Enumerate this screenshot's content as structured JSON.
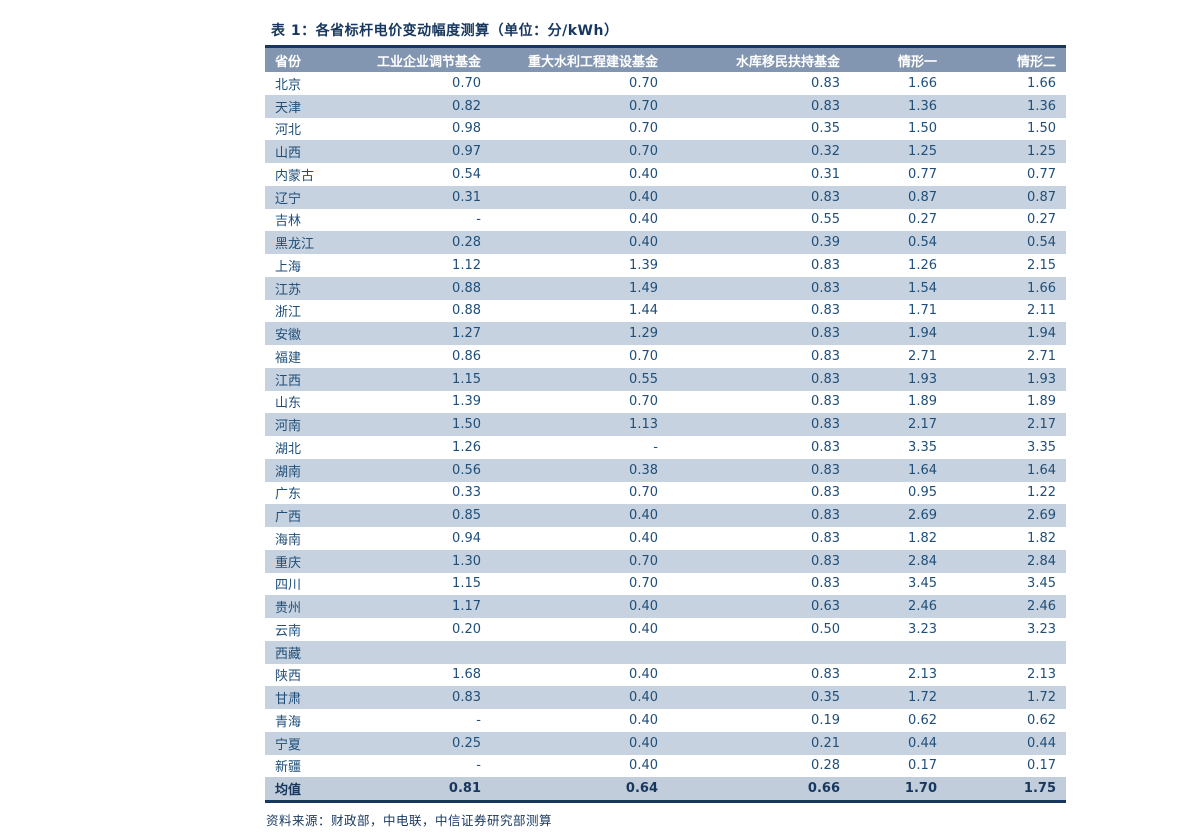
{
  "title": "表 1：各省标杆电价变动幅度测算（单位：分/kWh）",
  "source": "资料来源：财政部，中电联，中信证券研究部测算",
  "colors": {
    "title_text": "#17375E",
    "header_bg": "#8296B1",
    "header_text": "#FFFFFF",
    "row_stripe": "#C6D2DF",
    "cell_text": "#1F4E79",
    "avg_row_bg": "#C1CDDA",
    "border_dark": "#17375E",
    "page_bg": "#FFFFFF"
  },
  "chart_data": {
    "type": "table",
    "title": "表 1：各省标杆电价变动幅度测算（单位：分/kWh）",
    "columns": [
      "省份",
      "工业企业调节基金",
      "重大水利工程建设基金",
      "水库移民扶持基金",
      "情形一",
      "情形二"
    ],
    "rows": [
      [
        "北京",
        "0.70",
        "0.70",
        "0.83",
        "1.66",
        "1.66"
      ],
      [
        "天津",
        "0.82",
        "0.70",
        "0.83",
        "1.36",
        "1.36"
      ],
      [
        "河北",
        "0.98",
        "0.70",
        "0.35",
        "1.50",
        "1.50"
      ],
      [
        "山西",
        "0.97",
        "0.70",
        "0.32",
        "1.25",
        "1.25"
      ],
      [
        "内蒙古",
        "0.54",
        "0.40",
        "0.31",
        "0.77",
        "0.77"
      ],
      [
        "辽宁",
        "0.31",
        "0.40",
        "0.83",
        "0.87",
        "0.87"
      ],
      [
        "吉林",
        "-",
        "0.40",
        "0.55",
        "0.27",
        "0.27"
      ],
      [
        "黑龙江",
        "0.28",
        "0.40",
        "0.39",
        "0.54",
        "0.54"
      ],
      [
        "上海",
        "1.12",
        "1.39",
        "0.83",
        "1.26",
        "2.15"
      ],
      [
        "江苏",
        "0.88",
        "1.49",
        "0.83",
        "1.54",
        "1.66"
      ],
      [
        "浙江",
        "0.88",
        "1.44",
        "0.83",
        "1.71",
        "2.11"
      ],
      [
        "安徽",
        "1.27",
        "1.29",
        "0.83",
        "1.94",
        "1.94"
      ],
      [
        "福建",
        "0.86",
        "0.70",
        "0.83",
        "2.71",
        "2.71"
      ],
      [
        "江西",
        "1.15",
        "0.55",
        "0.83",
        "1.93",
        "1.93"
      ],
      [
        "山东",
        "1.39",
        "0.70",
        "0.83",
        "1.89",
        "1.89"
      ],
      [
        "河南",
        "1.50",
        "1.13",
        "0.83",
        "2.17",
        "2.17"
      ],
      [
        "湖北",
        "1.26",
        "-",
        "0.83",
        "3.35",
        "3.35"
      ],
      [
        "湖南",
        "0.56",
        "0.38",
        "0.83",
        "1.64",
        "1.64"
      ],
      [
        "广东",
        "0.33",
        "0.70",
        "0.83",
        "0.95",
        "1.22"
      ],
      [
        "广西",
        "0.85",
        "0.40",
        "0.83",
        "2.69",
        "2.69"
      ],
      [
        "海南",
        "0.94",
        "0.40",
        "0.83",
        "1.82",
        "1.82"
      ],
      [
        "重庆",
        "1.30",
        "0.70",
        "0.83",
        "2.84",
        "2.84"
      ],
      [
        "四川",
        "1.15",
        "0.70",
        "0.83",
        "3.45",
        "3.45"
      ],
      [
        "贵州",
        "1.17",
        "0.40",
        "0.63",
        "2.46",
        "2.46"
      ],
      [
        "云南",
        "0.20",
        "0.40",
        "0.50",
        "3.23",
        "3.23"
      ],
      [
        "西藏",
        "",
        "",
        "",
        "",
        ""
      ],
      [
        "陕西",
        "1.68",
        "0.40",
        "0.83",
        "2.13",
        "2.13"
      ],
      [
        "甘肃",
        "0.83",
        "0.40",
        "0.35",
        "1.72",
        "1.72"
      ],
      [
        "青海",
        "-",
        "0.40",
        "0.19",
        "0.62",
        "0.62"
      ],
      [
        "宁夏",
        "0.25",
        "0.40",
        "0.21",
        "0.44",
        "0.44"
      ],
      [
        "新疆",
        "-",
        "0.40",
        "0.28",
        "0.17",
        "0.17"
      ]
    ],
    "average_row": [
      "均值",
      "0.81",
      "0.64",
      "0.66",
      "1.70",
      "1.75"
    ]
  }
}
